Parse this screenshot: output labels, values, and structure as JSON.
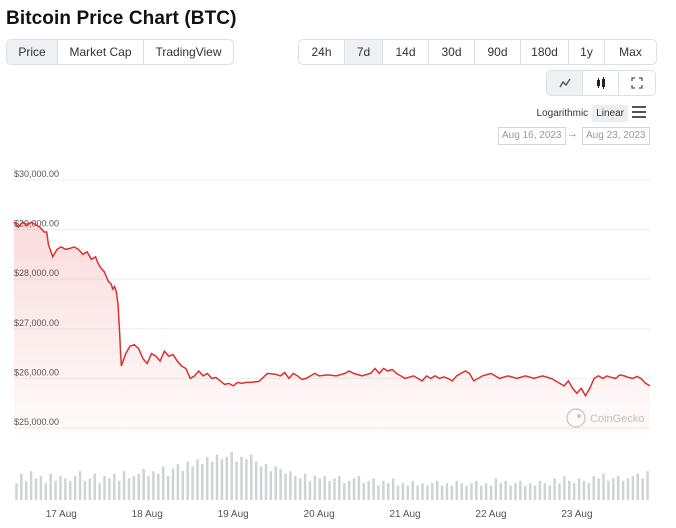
{
  "header": {
    "title": "Bitcoin Price Chart (BTC)"
  },
  "view_tabs": [
    {
      "label": "Price",
      "active": true
    },
    {
      "label": "Market Cap",
      "active": false
    },
    {
      "label": "TradingView",
      "active": false
    }
  ],
  "range_tabs": [
    {
      "label": "24h",
      "active": false
    },
    {
      "label": "7d",
      "active": true
    },
    {
      "label": "14d",
      "active": false
    },
    {
      "label": "30d",
      "active": false
    },
    {
      "label": "90d",
      "active": false
    },
    {
      "label": "180d",
      "active": false
    },
    {
      "label": "1y",
      "active": false
    },
    {
      "label": "Max",
      "active": false
    }
  ],
  "chart_type_tabs": [
    {
      "icon": "line-chart-icon",
      "active": true
    },
    {
      "icon": "candlestick-icon",
      "active": false
    },
    {
      "icon": "fullscreen-icon",
      "active": false
    }
  ],
  "scale_toggle": {
    "logarithmic_label": "Logarithmic",
    "linear_label": "Linear",
    "active": "Linear"
  },
  "date_range": {
    "from": "Aug 16, 2023",
    "to": "Aug 23, 2023",
    "separator": "→"
  },
  "watermark": {
    "text": "CoinGecko"
  },
  "colors": {
    "line": "#dc3030",
    "volume": "#cfd2d6",
    "grid": "#eeeeee"
  },
  "chart_data": {
    "type": "line",
    "title": "",
    "xlabel": "",
    "ylabel": "",
    "ylim": [
      24900,
      30300
    ],
    "y_ticks": [
      25000,
      26000,
      27000,
      28000,
      29000,
      30000
    ],
    "y_tick_labels": [
      "$25,000.00",
      "$26,000.00",
      "$27,000.00",
      "$28,000.00",
      "$29,000.00",
      "$30,000.00"
    ],
    "x_tick_labels": [
      "17 Aug",
      "18 Aug",
      "19 Aug",
      "20 Aug",
      "21 Aug",
      "22 Aug",
      "23 Aug"
    ],
    "x_range_days": [
      16.45,
      23.85
    ],
    "x_tick_days": [
      17,
      18,
      19,
      20,
      21,
      22,
      23
    ],
    "series": [
      {
        "values_x_days": [
          16.45,
          16.5,
          16.55,
          16.6,
          16.65,
          16.7,
          16.75,
          16.8,
          16.83,
          16.85,
          16.9,
          16.95,
          17.0,
          17.05,
          17.1,
          17.15,
          17.2,
          17.25,
          17.3,
          17.35,
          17.4,
          17.42,
          17.45,
          17.5,
          17.55,
          17.58,
          17.6,
          17.62,
          17.64,
          17.66,
          17.68,
          17.69,
          17.7,
          17.75,
          17.8,
          17.85,
          17.9,
          17.95,
          18.0,
          18.05,
          18.1,
          18.15,
          18.2,
          18.25,
          18.3,
          18.35,
          18.4,
          18.45,
          18.5,
          18.55,
          18.6,
          18.65,
          18.7,
          18.75,
          18.8,
          18.85,
          18.9,
          18.95,
          19.0,
          19.05,
          19.1,
          19.15,
          19.2,
          19.3,
          19.4,
          19.5,
          19.55,
          19.6,
          19.65,
          19.7,
          19.75,
          19.8,
          19.85,
          19.9,
          19.95,
          20.0,
          20.1,
          20.2,
          20.3,
          20.35,
          20.4,
          20.5,
          20.6,
          20.65,
          20.7,
          20.75,
          20.8,
          20.85,
          20.9,
          20.95,
          21.0,
          21.1,
          21.2,
          21.25,
          21.3,
          21.35,
          21.4,
          21.45,
          21.5,
          21.55,
          21.6,
          21.65,
          21.7,
          21.75,
          21.8,
          21.9,
          22.0,
          22.1,
          22.2,
          22.3,
          22.4,
          22.5,
          22.6,
          22.7,
          22.75,
          22.8,
          22.85,
          22.9,
          22.95,
          23.0,
          23.05,
          23.1,
          23.15,
          23.2,
          23.25,
          23.3,
          23.35,
          23.4,
          23.45,
          23.5,
          23.55,
          23.6,
          23.65,
          23.7,
          23.75,
          23.8,
          23.85
        ],
        "values_y": [
          29150,
          29050,
          29150,
          29080,
          29150,
          29100,
          29050,
          28950,
          28950,
          28700,
          28450,
          28600,
          28650,
          28600,
          28620,
          28650,
          28600,
          28500,
          28550,
          28400,
          28450,
          28350,
          28250,
          28150,
          27950,
          27900,
          27800,
          27850,
          27750,
          27500,
          26900,
          26500,
          26250,
          26500,
          26650,
          26680,
          26600,
          26400,
          26300,
          26500,
          26450,
          26350,
          26550,
          26450,
          26480,
          26350,
          26250,
          26200,
          26000,
          26050,
          26150,
          26050,
          26100,
          26000,
          26020,
          25950,
          25880,
          25900,
          25850,
          25920,
          25900,
          25920,
          25920,
          25940,
          26100,
          26080,
          26050,
          26120,
          26000,
          26100,
          26050,
          25980,
          26000,
          26050,
          26100,
          26050,
          26070,
          26050,
          26100,
          26150,
          26100,
          26050,
          26100,
          26200,
          26100,
          26200,
          26150,
          26180,
          26100,
          26050,
          26000,
          26050,
          25950,
          26050,
          26000,
          26050,
          26000,
          26030,
          26000,
          25950,
          26050,
          26100,
          26150,
          26100,
          25950,
          26050,
          26100,
          26000,
          26050,
          26000,
          26050,
          26000,
          26050,
          26000,
          25950,
          25900,
          25850,
          25950,
          25800,
          25700,
          25800,
          25650,
          25800,
          26000,
          26050,
          26000,
          26050,
          26020,
          26000,
          26070,
          26050,
          26020,
          26000,
          26040,
          25990,
          25900,
          25850
        ]
      }
    ],
    "volume_relative": [
      0.35,
      0.55,
      0.4,
      0.6,
      0.45,
      0.5,
      0.35,
      0.55,
      0.4,
      0.5,
      0.45,
      0.4,
      0.5,
      0.6,
      0.4,
      0.45,
      0.55,
      0.35,
      0.5,
      0.45,
      0.55,
      0.4,
      0.6,
      0.45,
      0.5,
      0.55,
      0.65,
      0.5,
      0.6,
      0.55,
      0.7,
      0.5,
      0.65,
      0.75,
      0.6,
      0.8,
      0.7,
      0.85,
      0.75,
      0.9,
      0.8,
      0.95,
      0.85,
      0.9,
      1.0,
      0.8,
      0.9,
      0.85,
      0.95,
      0.8,
      0.7,
      0.75,
      0.6,
      0.7,
      0.65,
      0.55,
      0.6,
      0.5,
      0.45,
      0.55,
      0.4,
      0.5,
      0.45,
      0.5,
      0.4,
      0.45,
      0.5,
      0.35,
      0.4,
      0.45,
      0.5,
      0.35,
      0.4,
      0.45,
      0.3,
      0.4,
      0.35,
      0.45,
      0.3,
      0.35,
      0.3,
      0.4,
      0.3,
      0.35,
      0.3,
      0.35,
      0.4,
      0.3,
      0.35,
      0.3,
      0.4,
      0.35,
      0.3,
      0.35,
      0.4,
      0.3,
      0.35,
      0.3,
      0.45,
      0.35,
      0.4,
      0.3,
      0.35,
      0.4,
      0.3,
      0.35,
      0.3,
      0.4,
      0.35,
      0.3,
      0.45,
      0.35,
      0.5,
      0.4,
      0.35,
      0.45,
      0.4,
      0.35,
      0.5,
      0.45,
      0.55,
      0.4,
      0.45,
      0.5,
      0.4,
      0.45,
      0.5,
      0.55,
      0.45,
      0.6
    ],
    "grid": true,
    "legend": "none"
  }
}
